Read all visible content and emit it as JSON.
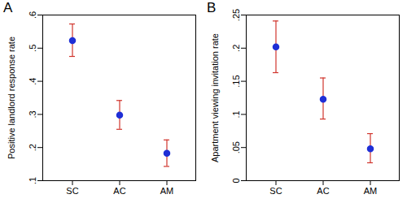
{
  "chart_data": [
    {
      "type": "scatter",
      "title": "A",
      "y_label": "Positive landlord response rate",
      "categories": [
        "SC",
        "AC",
        "AM"
      ],
      "values": [
        0.523,
        0.298,
        0.183
      ],
      "error_low": [
        0.475,
        0.255,
        0.143
      ],
      "error_high": [
        0.573,
        0.342,
        0.223
      ],
      "color": "#1f2fd6",
      "error_color": "#d0342c",
      "ylim": [
        0.1,
        0.6
      ],
      "yticks": [
        {
          "value": 0.1,
          "label": ".1"
        },
        {
          "value": 0.2,
          "label": ".2"
        },
        {
          "value": 0.3,
          "label": ".3"
        },
        {
          "value": 0.4,
          "label": ".4"
        },
        {
          "value": 0.5,
          "label": ".5"
        },
        {
          "value": 0.6,
          "label": ".6"
        }
      ],
      "grid": false
    },
    {
      "type": "scatter",
      "title": "B",
      "y_label": "Apartment viewing invitation rate",
      "categories": [
        "SC",
        "AC",
        "AM"
      ],
      "values": [
        0.202,
        0.123,
        0.048
      ],
      "error_low": [
        0.163,
        0.093,
        0.027
      ],
      "error_high": [
        0.241,
        0.155,
        0.071
      ],
      "color": "#1f2fd6",
      "error_color": "#d0342c",
      "ylim": [
        0,
        0.25
      ],
      "yticks": [
        0,
        {
          "value": 0.05,
          "label": ".05"
        },
        {
          "value": 0.1,
          "label": ".1"
        },
        {
          "value": 0.15,
          "label": ".15"
        },
        {
          "value": 0.2,
          "label": ".2"
        },
        {
          "value": 0.25,
          "label": ".25"
        }
      ],
      "grid": false
    }
  ]
}
